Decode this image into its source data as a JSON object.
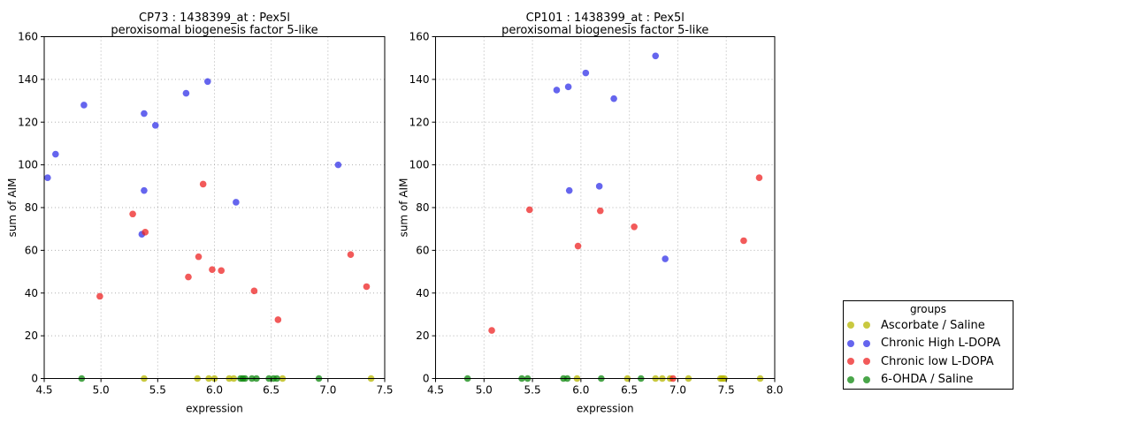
{
  "figure": {
    "background": "#ffffff",
    "frame_color": "#000000",
    "grid_color": "#b0b0b0"
  },
  "legend": {
    "title": "groups",
    "entries": [
      {
        "label": "Ascorbate / Saline",
        "color": "#b7b700",
        "opacity": 0.75
      },
      {
        "label": "Chronic High L-DOPA",
        "color": "#3232e8",
        "opacity": 0.75
      },
      {
        "label": "Chronic low L-DOPA",
        "color": "#ee2323",
        "opacity": 0.75
      },
      {
        "label": "6-OHDA / Saline",
        "color": "#0e880e",
        "opacity": 0.75
      }
    ]
  },
  "chart_data": [
    {
      "type": "scatter",
      "title_line1": "CP73 : 1438399_at : Pex5l",
      "title_line2": "peroxisomal biogenesis factor 5-like",
      "xlabel": "expression",
      "ylabel": "sum of AIM",
      "xlim": [
        4.5,
        7.5
      ],
      "ylim": [
        0,
        160
      ],
      "xticks": [
        4.5,
        5.0,
        5.5,
        6.0,
        6.5,
        7.0,
        7.5
      ],
      "yticks": [
        0,
        20,
        40,
        60,
        80,
        100,
        120,
        140,
        160
      ],
      "grid": true,
      "series": [
        {
          "name": "Ascorbate / Saline",
          "color": "#b7b700",
          "opacity": 0.75,
          "points": [
            [
              5.38,
              0
            ],
            [
              5.85,
              0
            ],
            [
              5.95,
              0
            ],
            [
              6.0,
              0
            ],
            [
              6.13,
              0
            ],
            [
              6.17,
              0
            ],
            [
              6.6,
              0
            ],
            [
              7.38,
              0
            ]
          ]
        },
        {
          "name": "Chronic High L-DOPA",
          "color": "#3232e8",
          "opacity": 0.75,
          "points": [
            [
              4.53,
              94
            ],
            [
              4.6,
              105
            ],
            [
              4.85,
              128
            ],
            [
              5.36,
              67.5
            ],
            [
              5.38,
              88
            ],
            [
              5.38,
              124
            ],
            [
              5.48,
              118.5
            ],
            [
              5.75,
              133.5
            ],
            [
              5.94,
              139
            ],
            [
              6.19,
              82.5
            ],
            [
              7.09,
              100
            ]
          ]
        },
        {
          "name": "Chronic low L-DOPA",
          "color": "#ee2323",
          "opacity": 0.75,
          "points": [
            [
              4.99,
              38.5
            ],
            [
              5.28,
              77
            ],
            [
              5.39,
              68.5
            ],
            [
              5.77,
              47.5
            ],
            [
              5.86,
              57
            ],
            [
              5.9,
              91
            ],
            [
              5.98,
              51
            ],
            [
              6.06,
              50.5
            ],
            [
              6.35,
              41
            ],
            [
              6.56,
              27.5
            ],
            [
              7.2,
              58
            ],
            [
              7.34,
              43
            ]
          ]
        },
        {
          "name": "6-OHDA / Saline",
          "color": "#0e880e",
          "opacity": 0.75,
          "points": [
            [
              4.83,
              0
            ],
            [
              6.23,
              0
            ],
            [
              6.25,
              0
            ],
            [
              6.27,
              0
            ],
            [
              6.33,
              0
            ],
            [
              6.37,
              0
            ],
            [
              6.48,
              0
            ],
            [
              6.52,
              0
            ],
            [
              6.55,
              0
            ],
            [
              6.92,
              0
            ]
          ]
        }
      ]
    },
    {
      "type": "scatter",
      "title_line1": "CP101 : 1438399_at : Pex5l",
      "title_line2": "peroxisomal biogenesis factor 5-like",
      "xlabel": "expression",
      "ylabel": "sum of AIM",
      "xlim": [
        4.5,
        8.0
      ],
      "ylim": [
        0,
        160
      ],
      "xticks": [
        4.5,
        5.0,
        5.5,
        6.0,
        6.5,
        7.0,
        7.5,
        8.0
      ],
      "yticks": [
        0,
        20,
        40,
        60,
        80,
        100,
        120,
        140,
        160
      ],
      "grid": true,
      "series": [
        {
          "name": "Ascorbate / Saline",
          "color": "#b7b700",
          "opacity": 0.75,
          "points": [
            [
              5.96,
              0
            ],
            [
              6.48,
              0
            ],
            [
              6.77,
              0
            ],
            [
              6.84,
              0
            ],
            [
              6.92,
              0
            ],
            [
              7.11,
              0
            ],
            [
              7.44,
              0
            ],
            [
              7.46,
              0
            ],
            [
              7.48,
              0
            ],
            [
              7.85,
              0
            ]
          ]
        },
        {
          "name": "Chronic High L-DOPA",
          "color": "#3232e8",
          "opacity": 0.75,
          "points": [
            [
              5.75,
              135
            ],
            [
              5.87,
              136.5
            ],
            [
              5.88,
              88
            ],
            [
              6.05,
              143
            ],
            [
              6.19,
              90
            ],
            [
              6.34,
              131
            ],
            [
              6.77,
              151
            ],
            [
              6.87,
              56
            ]
          ]
        },
        {
          "name": "Chronic low L-DOPA",
          "color": "#ee2323",
          "opacity": 0.75,
          "points": [
            [
              5.08,
              22.5
            ],
            [
              5.47,
              79
            ],
            [
              5.97,
              62
            ],
            [
              6.2,
              78.5
            ],
            [
              6.55,
              71
            ],
            [
              6.95,
              0
            ],
            [
              7.68,
              64.5
            ],
            [
              7.84,
              94
            ]
          ]
        },
        {
          "name": "6-OHDA / Saline",
          "color": "#0e880e",
          "opacity": 0.75,
          "points": [
            [
              4.83,
              0
            ],
            [
              5.39,
              0
            ],
            [
              5.45,
              0
            ],
            [
              5.82,
              0
            ],
            [
              5.86,
              0
            ],
            [
              6.21,
              0
            ],
            [
              6.62,
              0
            ]
          ]
        }
      ]
    }
  ]
}
